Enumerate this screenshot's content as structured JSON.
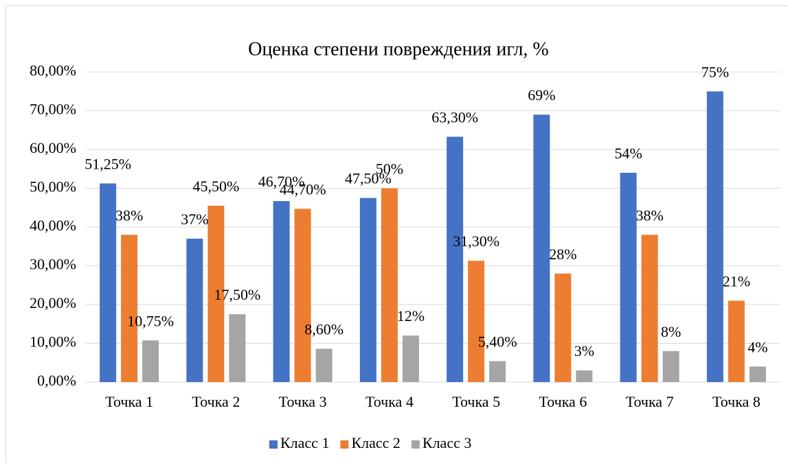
{
  "chart_data": {
    "type": "bar",
    "title": "Оценка степени повреждения игл, %",
    "categories": [
      "Точка 1",
      "Точка 2",
      "Точка 3",
      "Точка 4",
      "Точка 5",
      "Точка 6",
      "Точка 7",
      "Точка 8"
    ],
    "series": [
      {
        "name": "Класс 1",
        "color": "#4472c4",
        "values": [
          51.25,
          37,
          46.7,
          47.5,
          63.3,
          69,
          54,
          75
        ],
        "value_labels": [
          "51,25%",
          "37%",
          "46,70%",
          "47,50%",
          "63,30%",
          "69%",
          "54%",
          "75%"
        ]
      },
      {
        "name": "Класс 2",
        "color": "#ed7d31",
        "values": [
          38,
          45.5,
          44.7,
          50,
          31.3,
          28,
          38,
          21
        ],
        "value_labels": [
          "38%",
          "45,50%",
          "44,70%",
          "50%",
          "31,30%",
          "28%",
          "38%",
          "21%"
        ]
      },
      {
        "name": "Класс 3",
        "color": "#a5a5a5",
        "values": [
          10.75,
          17.5,
          8.6,
          12,
          5.4,
          3,
          8,
          4
        ],
        "value_labels": [
          "10,75%",
          "17,50%",
          "8,60%",
          "12%",
          "5,40%",
          "3%",
          "8%",
          "4%"
        ]
      }
    ],
    "ylim": [
      0,
      80
    ],
    "yticks": [
      {
        "value": 0,
        "label": "0,00%"
      },
      {
        "value": 10,
        "label": "10,00%"
      },
      {
        "value": 20,
        "label": "20,00%"
      },
      {
        "value": 30,
        "label": "30,00%"
      },
      {
        "value": 40,
        "label": "40,00%"
      },
      {
        "value": 50,
        "label": "50,00%"
      },
      {
        "value": 60,
        "label": "60,00%"
      },
      {
        "value": 70,
        "label": "70,00%"
      },
      {
        "value": 80,
        "label": "80,00%"
      }
    ],
    "grid": true,
    "legend": "bottom"
  }
}
